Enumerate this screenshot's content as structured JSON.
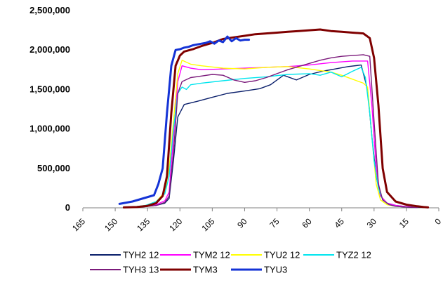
{
  "chart_data": {
    "type": "line",
    "title": "",
    "xlabel": "",
    "ylabel": "",
    "xlim": [
      165,
      0
    ],
    "ylim": [
      0,
      2500000
    ],
    "x_ticks": [
      165,
      150,
      135,
      120,
      105,
      90,
      75,
      60,
      45,
      30,
      15,
      0
    ],
    "x_tick_labels": [
      "165",
      "150",
      "135",
      "120",
      "105",
      "90",
      "75",
      "60",
      "45",
      "30",
      "15",
      "0"
    ],
    "y_ticks": [
      0,
      500000,
      1000000,
      1500000,
      2000000,
      2500000
    ],
    "y_tick_labels": [
      "0",
      "500,000",
      "1,000,000",
      "1,500,000",
      "2,000,000",
      "2,500,000"
    ],
    "grid": false,
    "legend_position": "bottom",
    "series": [
      {
        "name": "TYH2 12",
        "color": "#0a1f6b",
        "width": 1.4,
        "x": [
          146,
          136,
          131,
          127,
          125,
          123,
          121,
          118,
          112,
          105,
          98,
          90,
          83,
          78,
          72,
          66,
          60,
          54,
          48,
          42,
          36,
          33,
          31,
          29,
          27,
          24,
          20,
          15,
          10,
          7
        ],
        "y": [
          5000,
          20000,
          30000,
          60000,
          120000,
          600000,
          1150000,
          1310000,
          1350000,
          1400000,
          1450000,
          1480000,
          1510000,
          1560000,
          1680000,
          1620000,
          1690000,
          1730000,
          1760000,
          1790000,
          1810000,
          1500000,
          900000,
          400000,
          150000,
          60000,
          30000,
          15000,
          8000,
          5000
        ]
      },
      {
        "name": "TYM2 12",
        "color": "#ff00ff",
        "width": 1.4,
        "x": [
          143,
          136,
          131,
          127,
          125,
          123,
          121,
          119,
          115,
          110,
          100,
          90,
          80,
          70,
          60,
          50,
          40,
          33,
          31,
          29,
          27,
          24,
          20,
          15,
          10
        ],
        "y": [
          5000,
          20000,
          40000,
          90000,
          200000,
          900000,
          1600000,
          1800000,
          1770000,
          1750000,
          1760000,
          1770000,
          1780000,
          1790000,
          1810000,
          1840000,
          1860000,
          1860000,
          1300000,
          500000,
          150000,
          60000,
          30000,
          15000,
          5000
        ]
      },
      {
        "name": "TYU2 12",
        "color": "#ffff00",
        "width": 1.4,
        "x": [
          143,
          136,
          131,
          127,
          125,
          123,
          121,
          119,
          115,
          110,
          100,
          90,
          80,
          70,
          60,
          55,
          50,
          45,
          40,
          35,
          33,
          31,
          29,
          27,
          24,
          20,
          15,
          10
        ],
        "y": [
          5000,
          30000,
          80000,
          200000,
          500000,
          1100000,
          1700000,
          1870000,
          1820000,
          1800000,
          1770000,
          1760000,
          1780000,
          1790000,
          1760000,
          1740000,
          1720000,
          1680000,
          1630000,
          1580000,
          1530000,
          900000,
          300000,
          100000,
          40000,
          20000,
          8000,
          4000
        ]
      },
      {
        "name": "TYZ2 12",
        "color": "#00e5ee",
        "width": 1.4,
        "x": [
          143,
          136,
          131,
          127,
          125,
          123,
          121,
          119,
          117,
          115,
          110,
          100,
          90,
          80,
          70,
          60,
          55,
          50,
          45,
          40,
          36,
          34,
          32,
          30,
          28,
          26,
          23,
          20,
          15,
          10
        ],
        "y": [
          5000,
          30000,
          80000,
          180000,
          400000,
          1000000,
          1450000,
          1530000,
          1500000,
          1560000,
          1580000,
          1610000,
          1640000,
          1660000,
          1690000,
          1700000,
          1680000,
          1720000,
          1660000,
          1730000,
          1780000,
          1650000,
          1200000,
          600000,
          250000,
          100000,
          40000,
          20000,
          8000,
          3000
        ]
      },
      {
        "name": "TYH3 13",
        "color": "#7b1a7b",
        "width": 1.4,
        "x": [
          143,
          136,
          131,
          127,
          125,
          123,
          121,
          119,
          115,
          110,
          105,
          100,
          95,
          90,
          85,
          80,
          75,
          70,
          65,
          60,
          55,
          50,
          45,
          40,
          35,
          32,
          30,
          28,
          26,
          23,
          20,
          15,
          10
        ],
        "y": [
          5000,
          15000,
          30000,
          70000,
          150000,
          700000,
          1450000,
          1600000,
          1650000,
          1670000,
          1690000,
          1680000,
          1620000,
          1590000,
          1610000,
          1650000,
          1700000,
          1750000,
          1790000,
          1830000,
          1870000,
          1900000,
          1920000,
          1930000,
          1940000,
          1920000,
          1100000,
          300000,
          100000,
          40000,
          20000,
          8000,
          3000
        ]
      },
      {
        "name": "TYM3",
        "color": "#7f0000",
        "width": 3,
        "x": [
          146,
          140,
          135,
          131,
          128,
          126,
          124,
          122,
          120,
          118,
          114,
          110,
          105,
          100,
          95,
          90,
          85,
          80,
          75,
          70,
          65,
          60,
          55,
          50,
          45,
          40,
          35,
          32,
          30,
          28,
          26,
          24,
          20,
          15,
          10,
          7,
          5
        ],
        "y": [
          5000,
          10000,
          25000,
          60000,
          150000,
          400000,
          1200000,
          1800000,
          1930000,
          1980000,
          2010000,
          2050000,
          2090000,
          2140000,
          2160000,
          2180000,
          2200000,
          2210000,
          2220000,
          2230000,
          2240000,
          2250000,
          2260000,
          2240000,
          2230000,
          2220000,
          2210000,
          2150000,
          1900000,
          1300000,
          500000,
          200000,
          80000,
          40000,
          20000,
          10000,
          5000
        ]
      },
      {
        "name": "TYU3",
        "color": "#1433d6",
        "width": 3,
        "x": [
          148,
          142,
          137,
          132,
          130,
          128,
          126,
          124,
          122,
          120,
          118,
          116,
          114,
          112,
          110,
          108,
          106,
          104,
          102,
          100,
          98,
          96,
          94,
          92,
          90,
          88
        ],
        "y": [
          50000,
          80000,
          120000,
          160000,
          300000,
          500000,
          1200000,
          1800000,
          2000000,
          2010000,
          2030000,
          2040000,
          2060000,
          2070000,
          2080000,
          2090000,
          2110000,
          2080000,
          2120000,
          2100000,
          2170000,
          2110000,
          2150000,
          2120000,
          2130000,
          2130000
        ]
      }
    ]
  }
}
